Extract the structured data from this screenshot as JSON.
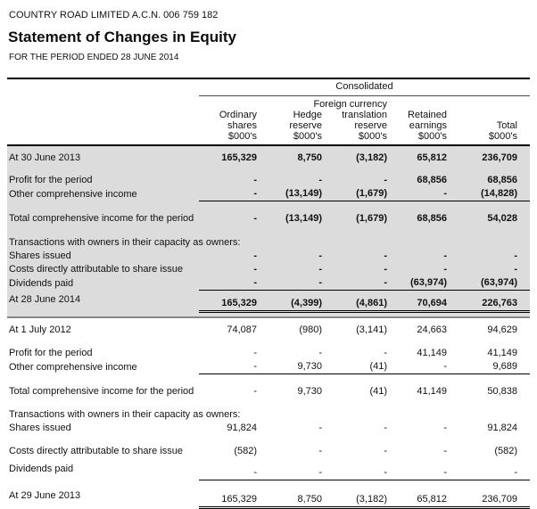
{
  "header": {
    "company_line": "COUNTRY ROAD LIMITED A.C.N. 006 759 182",
    "title": "Statement of Changes in Equity",
    "period_line": "FOR THE PERIOD ENDED 28 JUNE 2014"
  },
  "table": {
    "group_header": "Consolidated",
    "columns": [
      {
        "name": "ordinary-shares",
        "lines": [
          "Ordinary",
          "shares",
          "$000's"
        ]
      },
      {
        "name": "hedge-reserve",
        "lines": [
          "Hedge",
          "reserve",
          "$000's"
        ]
      },
      {
        "name": "foreign-currency-translation-reserve",
        "lines": [
          "Foreign currency",
          "translation",
          "reserve",
          "$000's"
        ]
      },
      {
        "name": "retained-earnings",
        "lines": [
          "Retained",
          "earnings",
          "$000's"
        ]
      },
      {
        "name": "total",
        "lines": [
          "Total",
          "$000's"
        ]
      }
    ],
    "sections": [
      {
        "shaded": true,
        "bold_values": true,
        "rows": [
          {
            "label": "At 30 June 2013",
            "values": [
              "165,329",
              "8,750",
              "(3,182)",
              "65,812",
              "236,709"
            ],
            "first": true
          },
          {
            "label": "Profit for the period",
            "values": [
              "-",
              "-",
              "-",
              "68,856",
              "68,856"
            ],
            "spacer_before": 10
          },
          {
            "label": "Other comprehensive income",
            "values": [
              "-",
              "(13,149)",
              "(1,679)",
              "-",
              "(14,828)"
            ],
            "underline": "single"
          },
          {
            "label": "Total comprehensive income for the period",
            "values": [
              "-",
              "(13,149)",
              "(1,679)",
              "68,856",
              "54,028"
            ],
            "spacer_before": 12
          },
          {
            "label": "Transactions with owners in their capacity as owners:",
            "values": null,
            "spacer_before": 12
          },
          {
            "label": "Shares issued",
            "values": [
              "-",
              "-",
              "-",
              "-",
              "-"
            ]
          },
          {
            "label": "Costs directly attributable to share issue",
            "values": [
              "-",
              "-",
              "-",
              "-",
              "-"
            ]
          },
          {
            "label": "Dividends paid",
            "values": [
              "-",
              "-",
              "-",
              "(63,974)",
              "(63,974)"
            ],
            "underline": "single"
          },
          {
            "label": "At 28 June 2014",
            "values": [
              "165,329",
              "(4,399)",
              "(4,861)",
              "70,694",
              "226,763"
            ],
            "underline": "double",
            "offset_values": true
          }
        ]
      },
      {
        "shaded": false,
        "bold_values": false,
        "rows": [
          {
            "label": "At 1 July 2012",
            "values": [
              "74,087",
              "(980)",
              "(3,141)",
              "24,663",
              "94,629"
            ],
            "spacer_before": 6
          },
          {
            "label": "Profit for the period",
            "values": [
              "-",
              "-",
              "-",
              "41,149",
              "41,149"
            ],
            "spacer_before": 11
          },
          {
            "label": "Other comprehensive income",
            "values": [
              "-",
              "9,730",
              "(41)",
              "-",
              "9,689"
            ],
            "underline": "single"
          },
          {
            "label": "Total comprehensive income for the period",
            "values": [
              "-",
              "9,730",
              "(41)",
              "41,149",
              "50,838"
            ],
            "spacer_before": 12
          },
          {
            "label": "Transactions with owners in their capacity as owners:",
            "values": null,
            "spacer_before": 11
          },
          {
            "label": "Shares issued",
            "values": [
              "91,824",
              "-",
              "-",
              "-",
              "91,824"
            ]
          },
          {
            "label": "Costs directly attributable to share issue",
            "values": [
              "(582)",
              "-",
              "-",
              "-",
              "(582)"
            ],
            "spacer_before": 11
          },
          {
            "label": "Dividends paid",
            "values": [
              "-",
              "-",
              "-",
              "-",
              "-"
            ],
            "underline": "single",
            "offset_values": true,
            "spacer_before": 2
          },
          {
            "label": "At 29 June 2013",
            "values": [
              "165,329",
              "8,750",
              "(3,182)",
              "65,812",
              "236,709"
            ],
            "underline": "double",
            "offset_values": true,
            "spacer_before": 7
          }
        ]
      }
    ]
  }
}
